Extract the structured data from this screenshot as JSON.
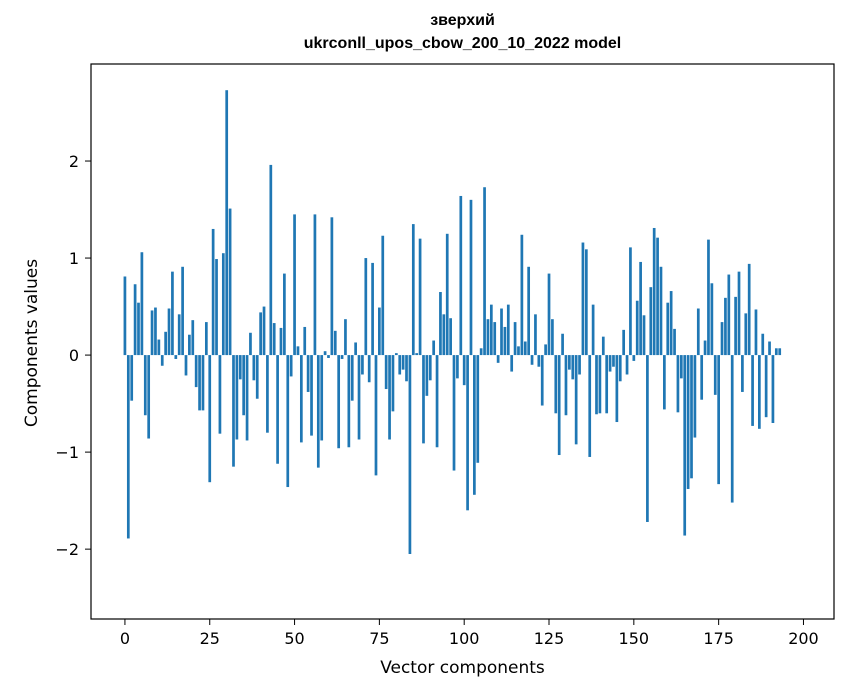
{
  "chart_data": {
    "type": "bar",
    "title_lines": [
      "зверхий",
      "ukrconll_upos_cbow_200_10_2022 model"
    ],
    "xlabel": "Vector components",
    "ylabel": "Components values",
    "xlim": [
      -10,
      209
    ],
    "ylim": [
      -2.72,
      3.0
    ],
    "xticks": [
      0,
      25,
      50,
      75,
      100,
      125,
      150,
      175,
      200
    ],
    "xtick_labels": [
      "0",
      "25",
      "50",
      "75",
      "100",
      "125",
      "150",
      "175",
      "200"
    ],
    "yticks": [
      -2,
      -1,
      0,
      1,
      2
    ],
    "ytick_labels": [
      "−2",
      "−1",
      "0",
      "1",
      "2"
    ],
    "grid": false,
    "bar_color": "#1f77b4",
    "values": [
      0.81,
      -1.89,
      -0.47,
      0.73,
      0.54,
      1.06,
      -0.62,
      -0.86,
      0.46,
      0.49,
      0.16,
      -0.11,
      0.24,
      0.48,
      0.86,
      -0.04,
      0.42,
      0.91,
      -0.21,
      0.21,
      0.36,
      -0.33,
      -0.57,
      -0.57,
      0.34,
      -1.31,
      1.3,
      0.99,
      -0.81,
      1.05,
      2.73,
      1.51,
      -1.15,
      -0.87,
      -0.25,
      -0.62,
      -0.88,
      0.23,
      -0.26,
      -0.45,
      0.44,
      0.5,
      -0.8,
      1.96,
      0.33,
      -1.12,
      0.28,
      0.84,
      -1.36,
      -0.22,
      1.45,
      0.09,
      -0.9,
      0.29,
      -0.38,
      -0.83,
      1.45,
      -1.16,
      -0.88,
      0.04,
      -0.03,
      1.42,
      0.25,
      -0.96,
      -0.04,
      0.37,
      -0.95,
      -0.47,
      0.13,
      -0.87,
      -0.2,
      1.0,
      -0.28,
      0.95,
      -1.24,
      0.49,
      1.23,
      -0.35,
      -0.87,
      -0.58,
      0.02,
      -0.2,
      -0.15,
      -0.27,
      -2.05,
      1.35,
      0.02,
      1.2,
      -0.91,
      -0.42,
      -0.26,
      0.15,
      -0.95,
      0.65,
      0.42,
      1.25,
      0.38,
      -1.19,
      -0.24,
      1.64,
      -0.31,
      -1.6,
      1.6,
      -1.44,
      -1.11,
      0.07,
      1.73,
      0.37,
      0.52,
      0.34,
      -0.08,
      0.48,
      0.29,
      0.52,
      -0.17,
      0.34,
      0.09,
      1.24,
      0.14,
      0.91,
      -0.1,
      0.42,
      -0.12,
      -0.52,
      0.11,
      0.84,
      0.37,
      -0.6,
      -1.03,
      0.22,
      -0.62,
      -0.15,
      -0.25,
      -0.92,
      -0.2,
      1.16,
      1.09,
      -1.05,
      0.52,
      -0.61,
      -0.6,
      0.19,
      -0.6,
      -0.17,
      -0.12,
      -0.69,
      -0.27,
      0.26,
      -0.2,
      1.11,
      -0.06,
      0.56,
      0.96,
      0.41,
      -1.72,
      0.7,
      1.31,
      1.21,
      0.91,
      -0.56,
      0.54,
      0.66,
      0.27,
      -0.59,
      -0.24,
      -1.86,
      -1.38,
      -1.27,
      -0.85,
      0.48,
      -0.46,
      0.15,
      1.19,
      0.74,
      -0.41,
      -1.33,
      0.34,
      0.59,
      0.83,
      -1.52,
      0.6,
      0.86,
      -0.38,
      0.43,
      0.94,
      -0.73,
      0.47,
      -0.76,
      0.22,
      -0.64,
      0.14,
      -0.7,
      0.07,
      0.07
    ]
  }
}
